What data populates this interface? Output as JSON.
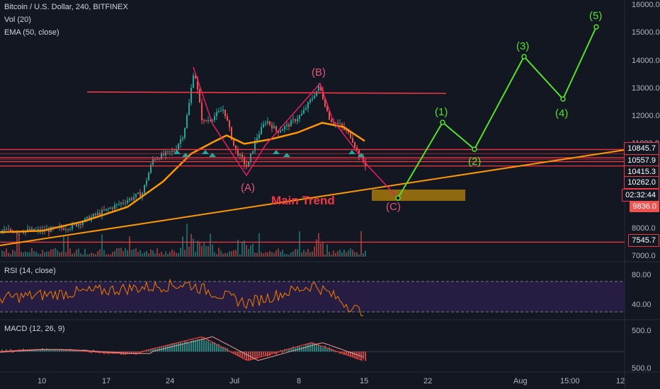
{
  "colors": {
    "background": "#131722",
    "panel_divider": "#2a2e39",
    "up": "#26a69a",
    "down": "#ef5350",
    "ema": "#ff9800",
    "trendline": "#ff9800",
    "red_lines": "#f23645",
    "pink_abc": "#e91e63",
    "green_wave": "#55e12b",
    "rsi_line": "#f57c00",
    "rsi_band": "#2a1d46",
    "macd_line": "#e53935",
    "macd_signal": "#ef9a9a",
    "target_box": "#b8860b"
  },
  "legend": {
    "symbol_title": "Bitcoin / U.S. Dollar, 240, BITFINEX",
    "vol_label": "Vol (20)",
    "ema_label": "EMA (50, close)",
    "rsi_label": "RSI (14, close)",
    "macd_label": "MACD (12, 26, 9)"
  },
  "price_axis": {
    "ticks": [
      "16000.0",
      "15000.0",
      "14000.0",
      "13000.0",
      "12000.0",
      "11000.0",
      "8000.0",
      "7000.0"
    ],
    "tags": [
      {
        "text": "10845.7",
        "style": "red"
      },
      {
        "text": "10557.9",
        "style": "red"
      },
      {
        "text": "10415.3",
        "style": "red"
      },
      {
        "text": "10262.0",
        "style": "red"
      },
      {
        "text": "02:32:44",
        "style": "countdown"
      },
      {
        "text": "9836.0",
        "style": "price"
      },
      {
        "text": "7545.7",
        "style": "red"
      }
    ]
  },
  "rsi_axis": {
    "ticks": [
      "80.00",
      "40.00"
    ]
  },
  "macd_axis": {
    "ticks": [
      "500.0",
      "500.0"
    ]
  },
  "time_axis": {
    "ticks": [
      "10",
      "17",
      "24",
      "Jul",
      "8",
      "15",
      "22",
      "Aug",
      "15:00",
      "12"
    ]
  },
  "annotations": {
    "main_trend": "Main Trend",
    "abc_labels": [
      "(A)",
      "(B)",
      "(C)"
    ],
    "wave_labels": [
      "(1)",
      "(2)",
      "(3)",
      "(4)",
      "(5)"
    ]
  },
  "chart_data": [
    {
      "type": "line",
      "title": "Bitcoin / U.S. Dollar, 240, BITFINEX",
      "series": [
        {
          "name": "EMA (50, close)",
          "x": [
            "10",
            "17",
            "24",
            "Jul",
            "8",
            "15"
          ],
          "values": [
            7900,
            8650,
            10500,
            11300,
            11700,
            11100
          ]
        },
        {
          "name": "Projected wave (1)-(5)",
          "x": [
            "(C)",
            "(1)",
            "(2)",
            "(3)",
            "(4)",
            "(5)"
          ],
          "values": [
            9650,
            11750,
            10800,
            14150,
            12600,
            15200
          ]
        }
      ],
      "levels": [
        12800,
        10845.7,
        10557.9,
        10415.3,
        10262.0,
        7545.7
      ],
      "current_price": 9836.0,
      "ylim": [
        7000,
        16000
      ]
    },
    {
      "type": "line",
      "title": "RSI (14, close)",
      "ylim": [
        20,
        100
      ],
      "bands": [
        30,
        70
      ]
    },
    {
      "type": "bar",
      "title": "MACD (12, 26, 9)",
      "ylim": [
        -500,
        500
      ]
    }
  ]
}
